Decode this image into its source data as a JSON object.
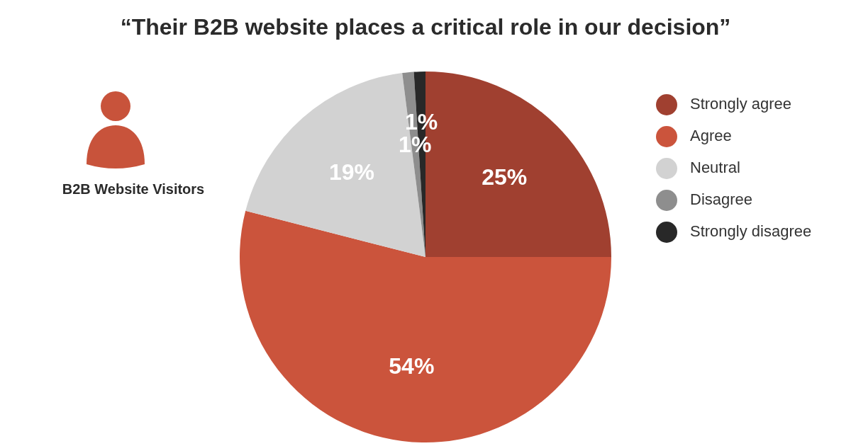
{
  "chart_data": {
    "type": "pie",
    "title": "“Their B2B website places a critical role in our decision”",
    "categories": [
      "Strongly agree",
      "Agree",
      "Neutral",
      "Disagree",
      "Strongly disagree"
    ],
    "values": [
      25,
      54,
      19,
      1,
      1
    ],
    "colors": [
      "#a04030",
      "#cb543c",
      "#d2d2d2",
      "#8e8e8e",
      "#282828"
    ],
    "value_labels": [
      "25%",
      "54%",
      "19%",
      "1%",
      "1%"
    ],
    "legend": "top right",
    "annotations": [
      "B2B Website Visitors"
    ]
  }
}
